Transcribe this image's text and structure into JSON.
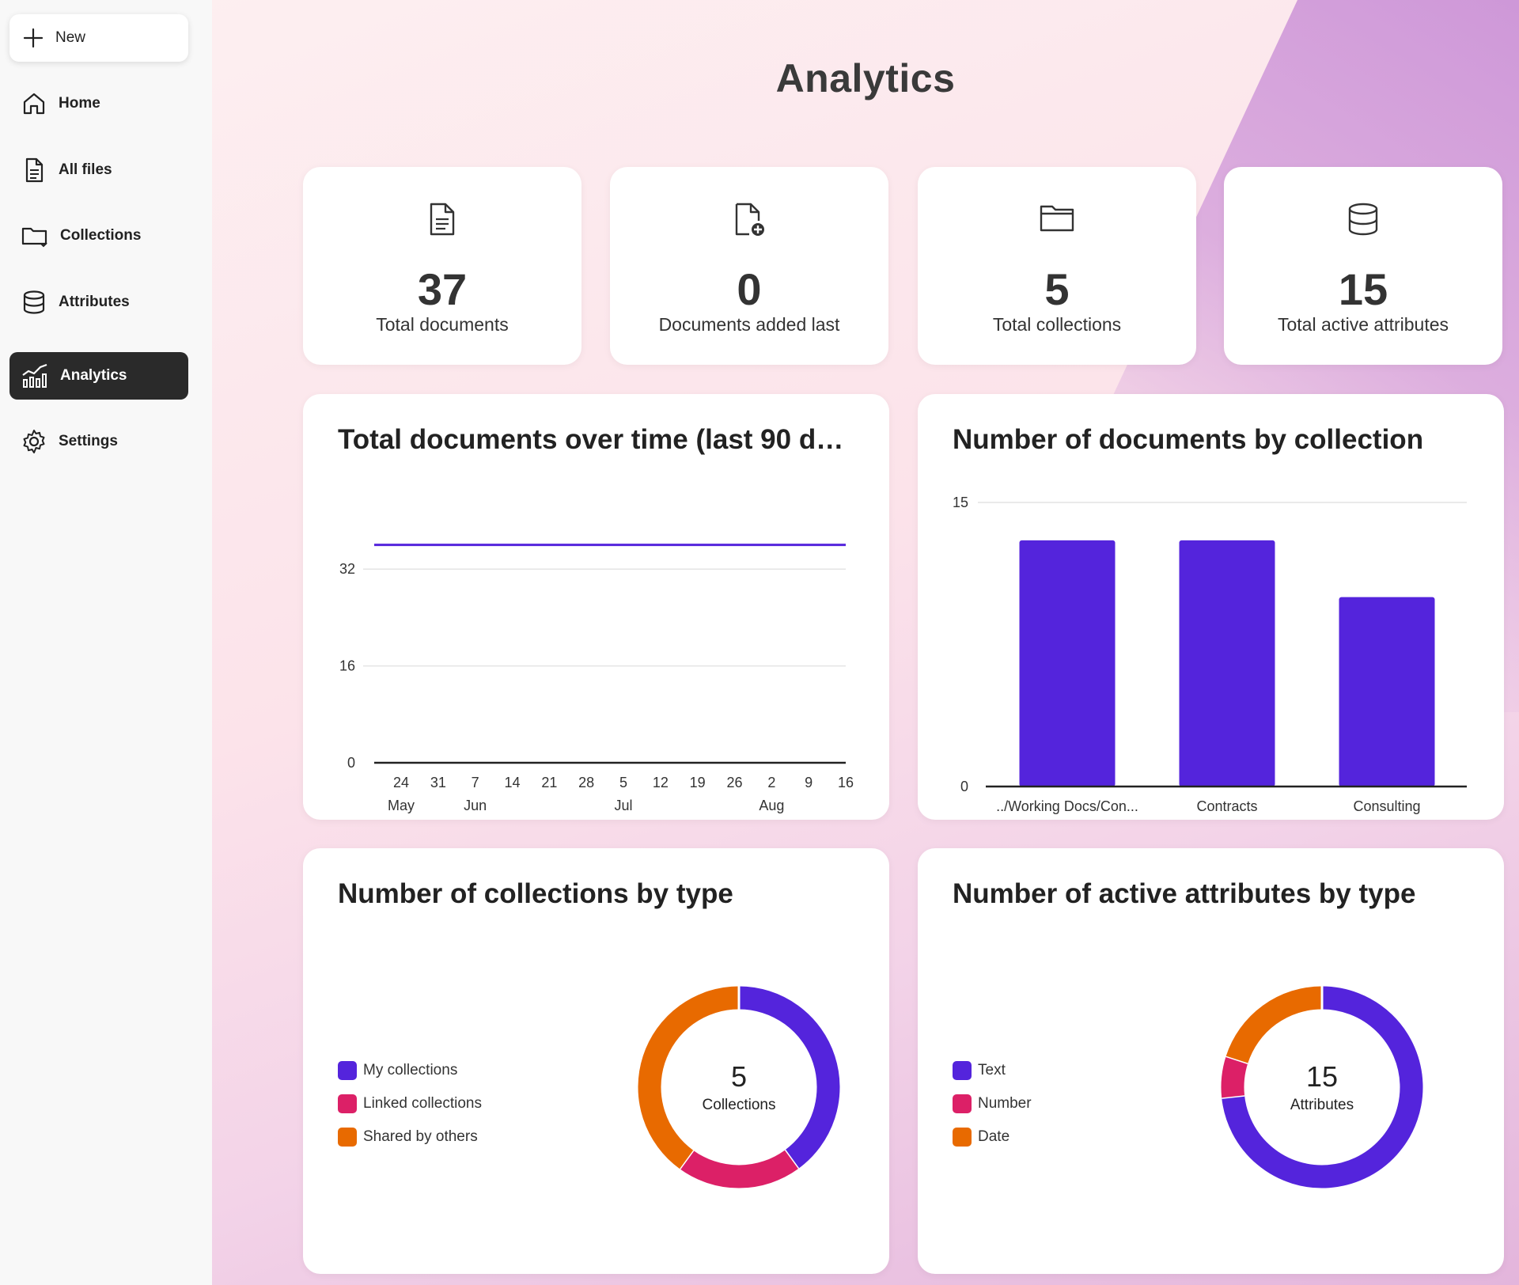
{
  "sidebar": {
    "new_label": "New",
    "items": [
      {
        "label": "Home",
        "icon": "home-icon"
      },
      {
        "label": "All files",
        "icon": "file-icon"
      },
      {
        "label": "Collections",
        "icon": "folder-icon"
      },
      {
        "label": "Attributes",
        "icon": "database-icon"
      },
      {
        "label": "Analytics",
        "icon": "analytics-icon",
        "active": true
      },
      {
        "label": "Settings",
        "icon": "gear-icon"
      }
    ]
  },
  "page_title": "Analytics",
  "kpis": [
    {
      "value": "37",
      "label": "Total documents",
      "icon": "document-icon"
    },
    {
      "value": "0",
      "label": "Documents added last",
      "icon": "document-add-icon"
    },
    {
      "value": "5",
      "label": "Total collections",
      "icon": "folder-icon"
    },
    {
      "value": "15",
      "label": "Total active attributes",
      "icon": "database-icon"
    }
  ],
  "colors": {
    "primary": "#5424dc",
    "pink": "#dc2067",
    "orange": "#e86a00"
  },
  "chart_data": [
    {
      "type": "line",
      "title": "Total documents over time (last 90 da...",
      "y_ticks": [
        0,
        16,
        32
      ],
      "ylim": [
        0,
        40
      ],
      "x_ticks": [
        "24",
        "31",
        "7",
        "14",
        "21",
        "28",
        "5",
        "12",
        "19",
        "26",
        "2",
        "9",
        "16"
      ],
      "x_month_labels": [
        {
          "label": "May",
          "at_tick": 0
        },
        {
          "label": "Jun",
          "at_tick": 2
        },
        {
          "label": "Jul",
          "at_tick": 6
        },
        {
          "label": "Aug",
          "at_tick": 10
        }
      ],
      "series": [
        {
          "values": [
            36,
            36,
            36,
            36,
            36,
            36,
            36,
            36,
            36,
            36,
            36,
            36,
            36
          ]
        }
      ]
    },
    {
      "type": "bar",
      "title": "Number of documents by collection",
      "categories": [
        "../Working Docs/Con...",
        "Contracts",
        "Consulting"
      ],
      "values": [
        13,
        13,
        10
      ],
      "y_ticks": [
        0,
        15
      ],
      "ylim": [
        0,
        15
      ]
    },
    {
      "type": "pie",
      "title": "Number of collections by type",
      "center_value": "5",
      "center_label": "Collections",
      "labels": [
        "My collections",
        "Linked collections",
        "Shared by others"
      ],
      "values": [
        2,
        1,
        2
      ]
    },
    {
      "type": "pie",
      "title": "Number of active attributes by type",
      "center_value": "15",
      "center_label": "Attributes",
      "labels": [
        "Text",
        "Number",
        "Date"
      ],
      "values": [
        11,
        1,
        3
      ]
    }
  ]
}
